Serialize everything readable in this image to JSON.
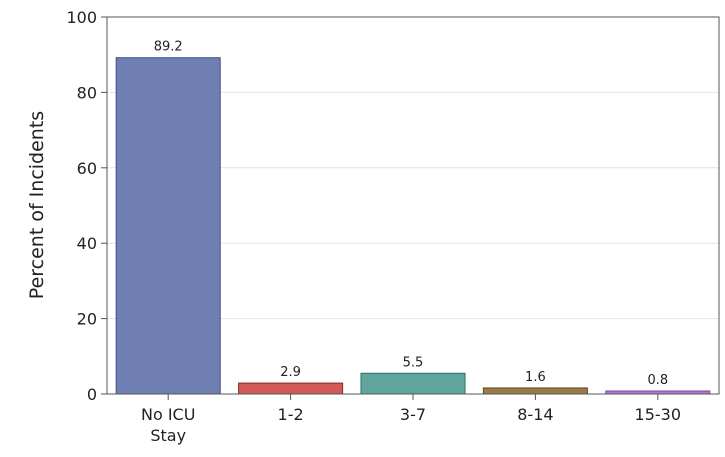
{
  "chart_data": {
    "type": "bar",
    "categories": [
      [
        "No ICU",
        "Stay"
      ],
      [
        "1-2"
      ],
      [
        "3-7"
      ],
      [
        "8-14"
      ],
      [
        "15-30"
      ]
    ],
    "values": [
      89.2,
      2.9,
      5.5,
      1.6,
      0.8
    ],
    "value_labels": [
      "89.2",
      "2.9",
      "5.5",
      "1.6",
      "0.8"
    ],
    "colors": [
      "#6f7fb4",
      "#d05a57",
      "#5fa59b",
      "#9a7a4a",
      "#b278cf"
    ],
    "stroke_colors": [
      "#3d4f86",
      "#8e2a28",
      "#2f6f67",
      "#5e4722",
      "#7b47a0"
    ],
    "title": "",
    "xlabel": "",
    "ylabel": "Percent of Incidents",
    "ylim": [
      0,
      100
    ],
    "yticks": [
      0,
      20,
      40,
      60,
      80,
      100
    ],
    "grid": true,
    "legend": "none"
  }
}
